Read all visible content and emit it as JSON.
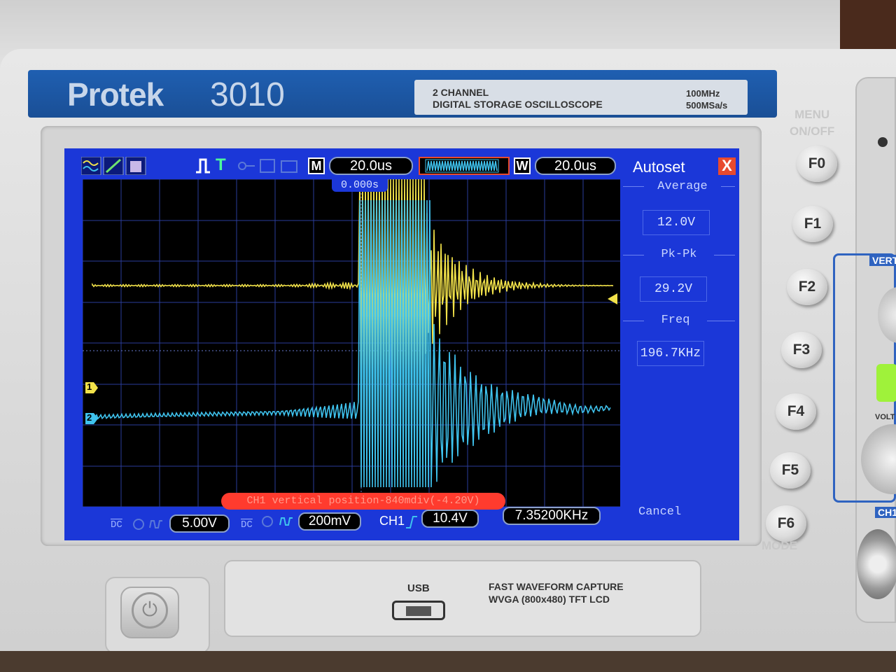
{
  "device": {
    "brand": "Protek",
    "model": "3010",
    "desc_line1": "2 CHANNEL",
    "desc_line2": "DIGITAL STORAGE OSCILLOSCOPE",
    "spec_bandwidth": "100MHz",
    "spec_samplerate": "500MSa/s",
    "menu_onoff_line1": "MENU",
    "menu_onoff_line2": "ON/OFF",
    "mode_label": "MODE",
    "vert_label": "VERT",
    "volt_label": "VOLT",
    "ch1_label": "CH1",
    "usb_label": "USB",
    "feature_line1": "FAST WAVEFORM CAPTURE",
    "feature_line2": "WVGA (800x480) TFT LCD"
  },
  "screen": {
    "toolbar": {
      "trigger_mode": "T",
      "main_label": "M",
      "main_timebase": "20.0us",
      "window_label": "W",
      "window_timebase": "20.0us"
    },
    "trigger_time_offset": "0.000s",
    "channel_markers": {
      "ch1": "1",
      "ch2": "2"
    },
    "message": "CH1 vertical position-840mdiv(-4.20V)",
    "status": {
      "ch1_coupling": "DC",
      "ch1_scale": "5.00V",
      "ch2_coupling": "DC",
      "ch2_scale": "200mV",
      "trigger_source": "CH1",
      "trigger_level": "10.4V",
      "trigger_freq": "7.35200KHz"
    },
    "side_menu": {
      "title": "Autoset",
      "close": "X",
      "items": [
        {
          "label": "Average",
          "value": "12.0V"
        },
        {
          "label": "Pk-Pk",
          "value": "29.2V"
        },
        {
          "label": "Freq",
          "value": "196.7KHz"
        }
      ],
      "cancel": "Cancel"
    }
  },
  "fkeys": [
    "F0",
    "F1",
    "F2",
    "F3",
    "F4",
    "F5",
    "F6"
  ],
  "colors": {
    "ch1_trace": "#f2e24a",
    "ch2_trace": "#3fc3ee",
    "screen_blue": "#1b37d8",
    "message_bg": "#ff3b2e"
  }
}
